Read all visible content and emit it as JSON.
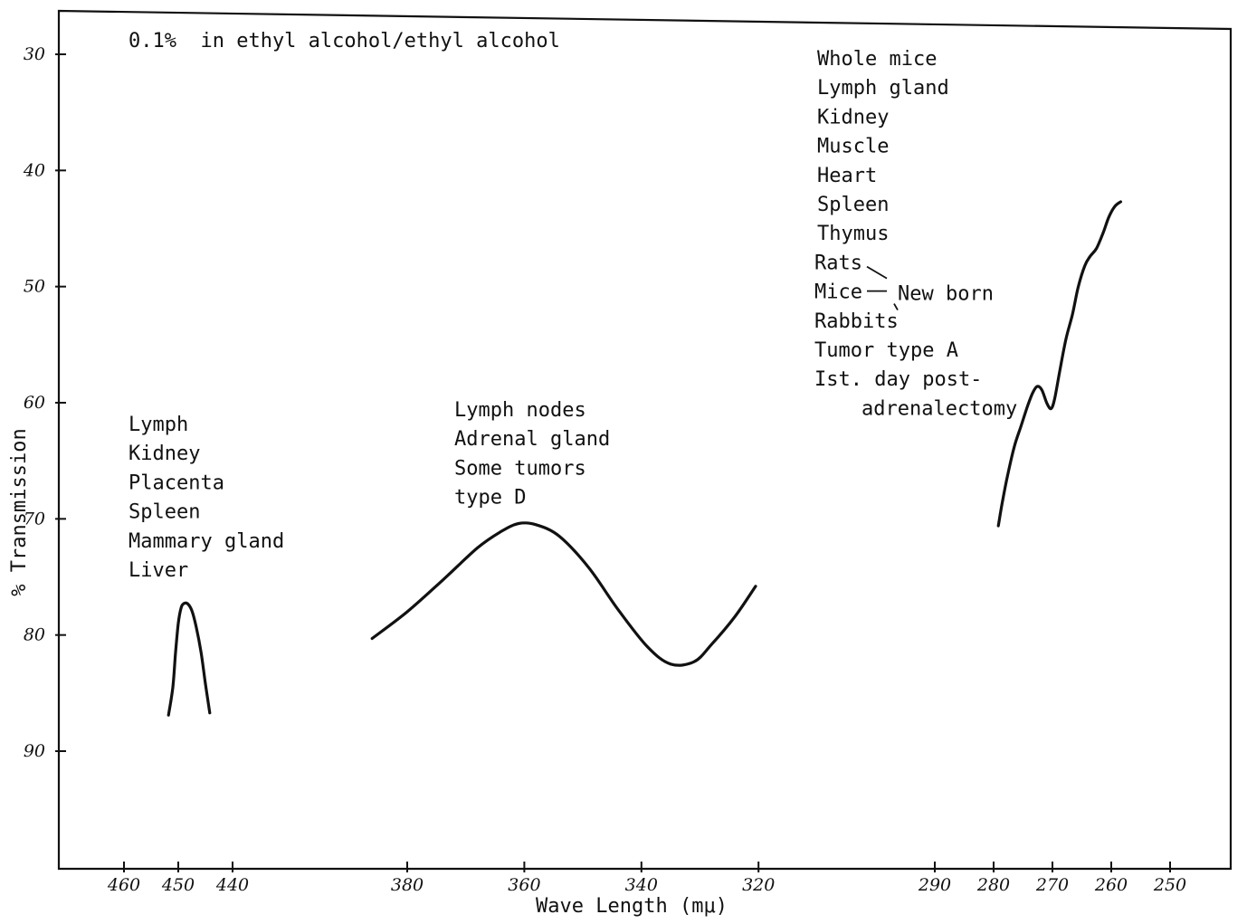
{
  "chart_data": {
    "type": "line",
    "xlabel": "Wave Length (mμ)",
    "ylabel": "% Transmission",
    "y_inverted": true,
    "ylim": [
      100,
      27
    ],
    "yticks": [
      30,
      40,
      50,
      60,
      70,
      80,
      90
    ],
    "ytick_labels": [
      "30",
      "40",
      "50",
      "60",
      "70",
      "80",
      "90"
    ],
    "x_axis_note": "broken, non-linear wavelength scale with gaps between segments",
    "x_segments": [
      {
        "ticks": [
          460,
          450,
          440
        ],
        "tick_labels": [
          "460",
          "450",
          "440"
        ]
      },
      {
        "ticks": [
          380,
          360,
          340,
          320
        ],
        "tick_labels": [
          "380",
          "360",
          "340",
          "320"
        ]
      },
      {
        "ticks": [
          290,
          280,
          270,
          260,
          250
        ],
        "tick_labels": [
          "290",
          "280",
          "270",
          "260",
          "250"
        ]
      }
    ],
    "annotation_top": "0.1%  in ethyl alcohol/ethyl alcohol",
    "series": [
      {
        "x": [
          451.8,
          451.0,
          450.5,
          450.0,
          449.5,
          449.0,
          448.3,
          447.5,
          446.7,
          445.8,
          445.0,
          444.2
        ],
        "y": [
          86.9,
          84.5,
          81.5,
          79.0,
          77.7,
          77.3,
          77.3,
          77.9,
          79.3,
          81.5,
          84.2,
          86.7
        ]
      },
      {
        "x": [
          386,
          380,
          374,
          368,
          364,
          361,
          358,
          354,
          349,
          344,
          339,
          335,
          331,
          328,
          324,
          320.5
        ],
        "y": [
          80.3,
          78.0,
          75.3,
          72.5,
          71.1,
          70.4,
          70.5,
          71.5,
          74.2,
          77.8,
          81.0,
          82.5,
          82.3,
          80.8,
          78.4,
          75.8
        ]
      },
      {
        "x": [
          279.2,
          278.5,
          277.6,
          276.5,
          275.4,
          274.3,
          273.4,
          272.6,
          271.8,
          270.9,
          270.2,
          269.6,
          268.7,
          267.7,
          266.6,
          265.6,
          264.5,
          263.6,
          262.5,
          261.4,
          260.4,
          259.4,
          258.4
        ],
        "y": [
          70.6,
          68.5,
          66.2,
          63.8,
          62.1,
          60.4,
          59.2,
          58.6,
          58.9,
          60.1,
          60.5,
          59.6,
          57.1,
          54.5,
          52.4,
          50.0,
          48.2,
          47.4,
          46.7,
          45.4,
          44.0,
          43.1,
          42.7
        ]
      }
    ],
    "annotations": [
      {
        "anchor": "left",
        "lines": [
          "Lymph",
          "Kidney",
          "Placenta",
          "Spleen",
          "Mammary gland",
          "Liver"
        ]
      },
      {
        "anchor": "middle",
        "lines": [
          "Lymph nodes",
          "Adrenal gland",
          "Some tumors",
          "   type D"
        ]
      },
      {
        "anchor": "right",
        "lines": [
          "Whole mice",
          "Lymph gland",
          "Kidney",
          "Muscle",
          "Heart",
          "Spleen",
          "Thymus",
          "Rats",
          "Mice",
          "Rabbits",
          "Tumor type A",
          "Ist. day post-",
          "adrenalectomy"
        ],
        "bracket_label": "New born"
      }
    ]
  }
}
